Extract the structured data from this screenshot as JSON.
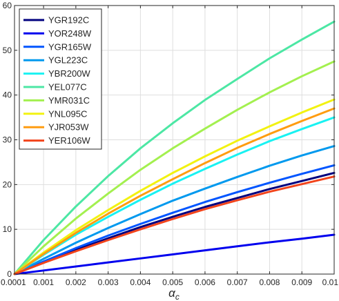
{
  "chart_data": {
    "type": "line",
    "title": "",
    "xlabel": "α_c",
    "xlabel_main": "α",
    "xlabel_sub": "c",
    "ylabel": "",
    "xlim": [
      0.0001,
      0.01
    ],
    "ylim": [
      0,
      60
    ],
    "grid": true,
    "legend_position": "top-left",
    "x_ticks": [
      0.0001,
      0.001,
      0.002,
      0.003,
      0.004,
      0.005,
      0.006,
      0.007,
      0.008,
      0.009,
      0.01
    ],
    "x_tick_labels": [
      "0.0001",
      "0.001",
      "0.002",
      "0.003",
      "0.004",
      "0.005",
      "0.006",
      "0.007",
      "0.008",
      "0.009",
      "0.01"
    ],
    "y_ticks": [
      0,
      10,
      20,
      30,
      40,
      50,
      60
    ],
    "y_tick_labels": [
      "0",
      "10",
      "20",
      "30",
      "40",
      "50",
      "60"
    ],
    "x": [
      0.0001,
      0.001,
      0.002,
      0.003,
      0.004,
      0.005,
      0.006,
      0.007,
      0.008,
      0.009,
      0.01
    ],
    "series": [
      {
        "name": "YGR192C",
        "color": "#00007f",
        "values": [
          0,
          2.6,
          5.4,
          8.0,
          10.5,
          12.8,
          15.0,
          17.0,
          19.0,
          20.8,
          22.6
        ]
      },
      {
        "name": "YOR248W",
        "color": "#0000ee",
        "values": [
          0,
          0.8,
          1.7,
          2.6,
          3.5,
          4.4,
          5.3,
          6.2,
          7.1,
          7.9,
          8.8
        ]
      },
      {
        "name": "YGR165W",
        "color": "#0055ff",
        "values": [
          0,
          2.8,
          5.8,
          8.6,
          11.2,
          13.7,
          16.1,
          18.3,
          20.4,
          22.4,
          24.3
        ]
      },
      {
        "name": "YGL223C",
        "color": "#0099ee",
        "values": [
          0,
          3.4,
          7.0,
          10.3,
          13.4,
          16.4,
          19.1,
          21.7,
          24.2,
          26.5,
          28.6
        ]
      },
      {
        "name": "YBR200W",
        "color": "#19f2f2",
        "values": [
          0,
          4.3,
          8.8,
          12.8,
          16.6,
          20.2,
          23.5,
          26.7,
          29.7,
          32.4,
          35.0
        ]
      },
      {
        "name": "YEL077C",
        "color": "#4ce7a4",
        "values": [
          0,
          7.6,
          15.1,
          21.9,
          28.1,
          33.7,
          38.9,
          43.6,
          48.2,
          52.4,
          56.4
        ]
      },
      {
        "name": "YMR031C",
        "color": "#a3f04f",
        "values": [
          0,
          6.2,
          12.4,
          18.0,
          23.3,
          28.1,
          32.5,
          36.7,
          40.6,
          44.2,
          47.5
        ]
      },
      {
        "name": "YNL095C",
        "color": "#f2f211",
        "values": [
          0,
          4.8,
          9.8,
          14.3,
          18.6,
          22.6,
          26.3,
          29.8,
          33.0,
          36.1,
          39.0
        ]
      },
      {
        "name": "YJR053W",
        "color": "#ff9c10",
        "values": [
          0,
          4.5,
          9.2,
          13.5,
          17.5,
          21.2,
          24.8,
          28.2,
          31.3,
          34.2,
          37.0
        ]
      },
      {
        "name": "YER106W",
        "color": "#f2441b",
        "values": [
          0,
          2.5,
          5.1,
          7.6,
          10.0,
          12.3,
          14.5,
          16.5,
          18.4,
          20.1,
          21.8
        ]
      }
    ]
  }
}
